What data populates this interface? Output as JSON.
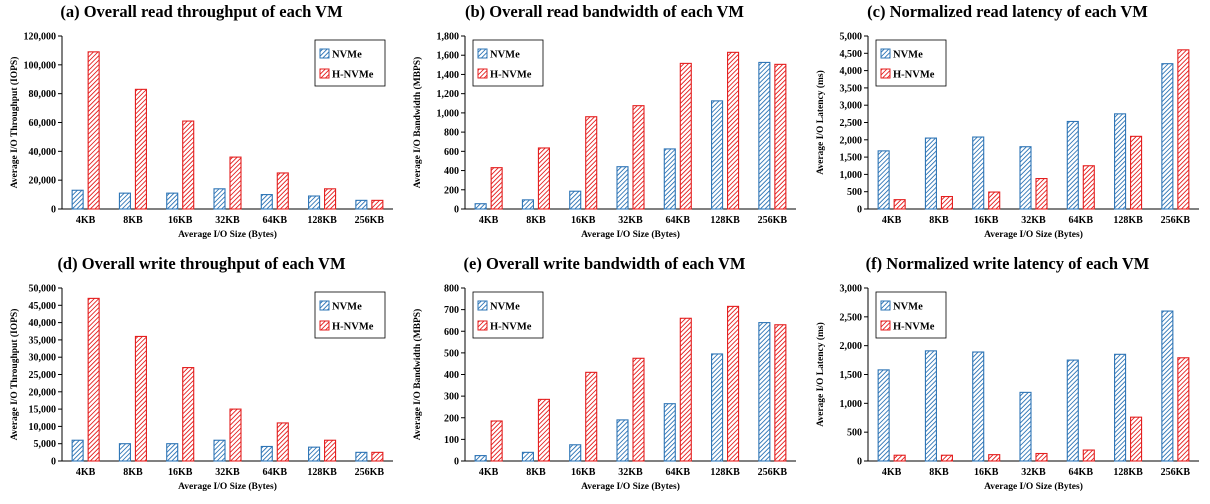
{
  "chart_data": [
    {
      "type": "bar",
      "title": "(a) Overall read throughput of each VM",
      "xlabel": "Average I/O Size (Bytes)",
      "ylabel": "Average I/O Throughput (IOPS)",
      "categories": [
        "4KB",
        "8KB",
        "16KB",
        "32KB",
        "64KB",
        "128KB",
        "256KB"
      ],
      "ylim": [
        0,
        120000
      ],
      "yticks": [
        "0",
        "20,000",
        "40,000",
        "60,000",
        "80,000",
        "100,000",
        "120,000"
      ],
      "legend_position": "top-right",
      "series": [
        {
          "name": "NVMe",
          "color": "#2e75b6",
          "values": [
            13000,
            11000,
            11000,
            14000,
            10000,
            9000,
            6000
          ]
        },
        {
          "name": "H-NVMe",
          "color": "#e41e1e",
          "values": [
            109000,
            83000,
            61000,
            36000,
            25000,
            14000,
            6000
          ]
        }
      ]
    },
    {
      "type": "bar",
      "title": "(b) Overall read bandwidth of each VM",
      "xlabel": "Average I/O Size (Bytes)",
      "ylabel": "Average I/O Bandwidth (MBPS)",
      "categories": [
        "4KB",
        "8KB",
        "16KB",
        "32KB",
        "64KB",
        "128KB",
        "256KB"
      ],
      "ylim": [
        0,
        1800
      ],
      "yticks": [
        "0",
        "200",
        "400",
        "600",
        "800",
        "1,000",
        "1,200",
        "1,400",
        "1,600",
        "1,800"
      ],
      "legend_position": "top-left",
      "series": [
        {
          "name": "NVMe",
          "color": "#2e75b6",
          "values": [
            55,
            95,
            185,
            440,
            625,
            1125,
            1525
          ]
        },
        {
          "name": "H-NVMe",
          "color": "#e41e1e",
          "values": [
            430,
            635,
            960,
            1075,
            1515,
            1630,
            1505
          ]
        }
      ]
    },
    {
      "type": "bar",
      "title": "(c) Normalized read latency of each VM",
      "xlabel": "Average I/O Size (Bytes)",
      "ylabel": "Average I/O Latency (ms)",
      "categories": [
        "4KB",
        "8KB",
        "16KB",
        "32KB",
        "64KB",
        "128KB",
        "256KB"
      ],
      "ylim": [
        0,
        5000
      ],
      "yticks": [
        "0",
        "500",
        "1,000",
        "1,500",
        "2,000",
        "2,500",
        "3,000",
        "3,500",
        "4,000",
        "4,500",
        "5,000"
      ],
      "legend_position": "top-left",
      "series": [
        {
          "name": "NVMe",
          "color": "#2e75b6",
          "values": [
            1680,
            2050,
            2080,
            1800,
            2530,
            2750,
            4200
          ]
        },
        {
          "name": "H-NVMe",
          "color": "#e41e1e",
          "values": [
            270,
            360,
            490,
            880,
            1250,
            2100,
            4600
          ]
        }
      ]
    },
    {
      "type": "bar",
      "title": "(d) Overall write throughput of each VM",
      "xlabel": "Average I/O Size (Bytes)",
      "ylabel": "Average I/O Throughput (IOPS)",
      "categories": [
        "4KB",
        "8KB",
        "16KB",
        "32KB",
        "64KB",
        "128KB",
        "256KB"
      ],
      "ylim": [
        0,
        50000
      ],
      "yticks": [
        "0",
        "5,000",
        "10,000",
        "15,000",
        "20,000",
        "25,000",
        "30,000",
        "35,000",
        "40,000",
        "45,000",
        "50,000"
      ],
      "legend_position": "top-right",
      "series": [
        {
          "name": "NVMe",
          "color": "#2e75b6",
          "values": [
            6000,
            5000,
            5000,
            6000,
            4200,
            4000,
            2500
          ]
        },
        {
          "name": "H-NVMe",
          "color": "#e41e1e",
          "values": [
            47000,
            36000,
            27000,
            15000,
            11000,
            6000,
            2500
          ]
        }
      ]
    },
    {
      "type": "bar",
      "title": "(e) Overall write bandwidth of each VM",
      "xlabel": "Average I/O Size (Bytes)",
      "ylabel": "Average I/O Bandwidth (MBPS)",
      "categories": [
        "4KB",
        "8KB",
        "16KB",
        "32KB",
        "64KB",
        "128KB",
        "256KB"
      ],
      "ylim": [
        0,
        800
      ],
      "yticks": [
        "0",
        "100",
        "200",
        "300",
        "400",
        "500",
        "600",
        "700",
        "800"
      ],
      "legend_position": "top-left",
      "series": [
        {
          "name": "NVMe",
          "color": "#2e75b6",
          "values": [
            25,
            40,
            75,
            190,
            265,
            495,
            640
          ]
        },
        {
          "name": "H-NVMe",
          "color": "#e41e1e",
          "values": [
            185,
            285,
            410,
            475,
            660,
            715,
            630
          ]
        }
      ]
    },
    {
      "type": "bar",
      "title": "(f) Normalized write  latency of each VM",
      "xlabel": "Average I/O Size (Bytes)",
      "ylabel": "Average I/O Latency (ms)",
      "categories": [
        "4KB",
        "8KB",
        "16KB",
        "32KB",
        "64KB",
        "128KB",
        "256KB"
      ],
      "ylim": [
        0,
        3000
      ],
      "yticks": [
        "0",
        "500",
        "1,000",
        "1,500",
        "2,000",
        "2,500",
        "3,000"
      ],
      "legend_position": "top-left",
      "series": [
        {
          "name": "NVMe",
          "color": "#2e75b6",
          "values": [
            1580,
            1910,
            1890,
            1190,
            1750,
            1850,
            2600
          ]
        },
        {
          "name": "H-NVMe",
          "color": "#e41e1e",
          "values": [
            100,
            100,
            110,
            130,
            190,
            760,
            1790
          ]
        }
      ]
    }
  ]
}
